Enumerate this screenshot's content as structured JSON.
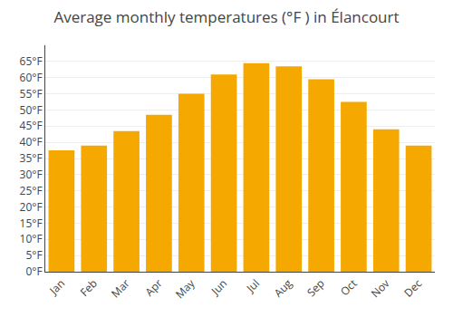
{
  "chart_data": {
    "type": "bar",
    "title": "Average monthly temperatures (°F ) in Élancourt",
    "categories": [
      "Jan",
      "Feb",
      "Mar",
      "Apr",
      "May",
      "Jun",
      "Jul",
      "Aug",
      "Sep",
      "Oct",
      "Nov",
      "Dec"
    ],
    "values": [
      37.5,
      39.0,
      43.5,
      48.5,
      55.0,
      61.0,
      64.5,
      63.5,
      59.5,
      52.5,
      44.0,
      39.0
    ],
    "color": "#F5A800",
    "ylim": [
      0,
      70
    ],
    "yticks": [
      {
        "value": 0,
        "label": "0°F"
      },
      {
        "value": 5,
        "label": "5°F"
      },
      {
        "value": 10,
        "label": "10°F"
      },
      {
        "value": 15,
        "label": "15°F"
      },
      {
        "value": 20,
        "label": "20°F"
      },
      {
        "value": 25,
        "label": "25°F"
      },
      {
        "value": 30,
        "label": "30°F"
      },
      {
        "value": 35,
        "label": "35°F"
      },
      {
        "value": 40,
        "label": "40°F"
      },
      {
        "value": 45,
        "label": "45°F"
      },
      {
        "value": 50,
        "label": "50°F"
      },
      {
        "value": 55,
        "label": "55°F"
      },
      {
        "value": 60,
        "label": "60°F"
      },
      {
        "value": 65,
        "label": "65°F"
      }
    ],
    "grid": true
  }
}
